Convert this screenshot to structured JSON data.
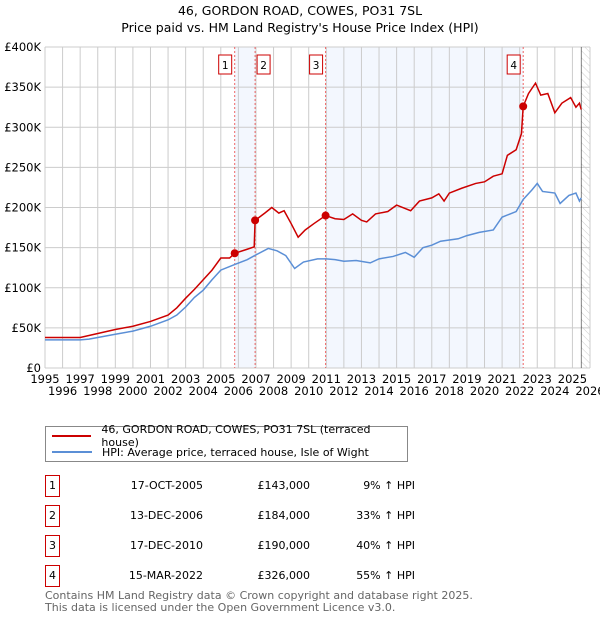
{
  "title": "46, GORDON ROAD, COWES, PO31 7SL",
  "subtitle": "Price paid vs. HM Land Registry's House Price Index (HPI)",
  "chart_data": {
    "type": "line",
    "xlim": [
      1995,
      2026
    ],
    "ylim": [
      0,
      400000
    ],
    "yticks": [
      {
        "v": 0,
        "label": "£0"
      },
      {
        "v": 50000,
        "label": "£50K"
      },
      {
        "v": 100000,
        "label": "£100K"
      },
      {
        "v": 150000,
        "label": "£150K"
      },
      {
        "v": 200000,
        "label": "£200K"
      },
      {
        "v": 250000,
        "label": "£250K"
      },
      {
        "v": 300000,
        "label": "£300K"
      },
      {
        "v": 350000,
        "label": "£350K"
      },
      {
        "v": 400000,
        "label": "£400K"
      }
    ],
    "xticks": [
      "1995",
      "1996",
      "1997",
      "1998",
      "1999",
      "2000",
      "2001",
      "2002",
      "2003",
      "2004",
      "2005",
      "2006",
      "2007",
      "2008",
      "2009",
      "2010",
      "2011",
      "2012",
      "2013",
      "2014",
      "2015",
      "2016",
      "2017",
      "2018",
      "2019",
      "2020",
      "2021",
      "2022",
      "2023",
      "2024",
      "2025",
      "2026"
    ],
    "shaded_ranges": [
      [
        2005.79,
        2006.95
      ],
      [
        2010.96,
        2022.2
      ]
    ],
    "hatched_from": 2025.5,
    "series": [
      {
        "name": "46, GORDON ROAD, COWES, PO31 7SL (terraced house)",
        "color": "#cc0000",
        "points": [
          [
            1995,
            38
          ],
          [
            1997,
            38
          ],
          [
            1998,
            43
          ],
          [
            1999,
            48
          ],
          [
            2000,
            52
          ],
          [
            2001,
            58
          ],
          [
            2002,
            66
          ],
          [
            2002.5,
            75
          ],
          [
            2003,
            87
          ],
          [
            2003.5,
            98
          ],
          [
            2004,
            110
          ],
          [
            2004.5,
            122
          ],
          [
            2005,
            137
          ],
          [
            2005.5,
            137
          ],
          [
            2005.79,
            143
          ],
          [
            2006.5,
            148
          ],
          [
            2006.9,
            151
          ],
          [
            2006.95,
            184
          ],
          [
            2007.5,
            193
          ],
          [
            2007.9,
            200
          ],
          [
            2008.3,
            193
          ],
          [
            2008.6,
            196
          ],
          [
            2009,
            180
          ],
          [
            2009.4,
            163
          ],
          [
            2009.8,
            172
          ],
          [
            2010.3,
            180
          ],
          [
            2010.96,
            190
          ],
          [
            2011.5,
            186
          ],
          [
            2012,
            185
          ],
          [
            2012.5,
            192
          ],
          [
            2013,
            184
          ],
          [
            2013.3,
            182
          ],
          [
            2013.8,
            192
          ],
          [
            2014.5,
            195
          ],
          [
            2015,
            203
          ],
          [
            2015.8,
            196
          ],
          [
            2016.3,
            208
          ],
          [
            2017,
            212
          ],
          [
            2017.4,
            217
          ],
          [
            2017.7,
            208
          ],
          [
            2018,
            218
          ],
          [
            2018.7,
            224
          ],
          [
            2019.5,
            230
          ],
          [
            2020,
            232
          ],
          [
            2020.5,
            239
          ],
          [
            2021,
            242
          ],
          [
            2021.3,
            265
          ],
          [
            2021.8,
            272
          ],
          [
            2022.1,
            292
          ],
          [
            2022.2,
            326
          ],
          [
            2022.5,
            342
          ],
          [
            2022.9,
            355
          ],
          [
            2023.2,
            340
          ],
          [
            2023.6,
            342
          ],
          [
            2024,
            318
          ],
          [
            2024.4,
            330
          ],
          [
            2024.9,
            337
          ],
          [
            2025.2,
            325
          ],
          [
            2025.4,
            330
          ],
          [
            2025.5,
            322
          ]
        ]
      },
      {
        "name": "HPI: Average price, terraced house, Isle of Wight",
        "color": "#5b8fd6",
        "points": [
          [
            1995,
            35
          ],
          [
            1997,
            35
          ],
          [
            1997.5,
            36
          ],
          [
            1998,
            38
          ],
          [
            1999,
            42
          ],
          [
            2000,
            46
          ],
          [
            2001,
            52
          ],
          [
            2002,
            60
          ],
          [
            2002.5,
            66
          ],
          [
            2003,
            76
          ],
          [
            2003.5,
            88
          ],
          [
            2004,
            97
          ],
          [
            2004.5,
            110
          ],
          [
            2005,
            122
          ],
          [
            2005.8,
            129
          ],
          [
            2006.5,
            135
          ],
          [
            2007,
            141
          ],
          [
            2007.7,
            149
          ],
          [
            2008.2,
            146
          ],
          [
            2008.7,
            140
          ],
          [
            2009.2,
            124
          ],
          [
            2009.7,
            132
          ],
          [
            2010.5,
            136
          ],
          [
            2011,
            136
          ],
          [
            2011.5,
            135
          ],
          [
            2012,
            133
          ],
          [
            2012.7,
            134
          ],
          [
            2013.5,
            131
          ],
          [
            2014,
            136
          ],
          [
            2014.8,
            139
          ],
          [
            2015.5,
            144
          ],
          [
            2016,
            138
          ],
          [
            2016.5,
            150
          ],
          [
            2017,
            153
          ],
          [
            2017.5,
            158
          ],
          [
            2018.5,
            161
          ],
          [
            2019,
            165
          ],
          [
            2019.7,
            169
          ],
          [
            2020.5,
            172
          ],
          [
            2021,
            188
          ],
          [
            2021.8,
            195
          ],
          [
            2022.2,
            210
          ],
          [
            2022.7,
            222
          ],
          [
            2023,
            230
          ],
          [
            2023.3,
            220
          ],
          [
            2024,
            218
          ],
          [
            2024.3,
            205
          ],
          [
            2024.8,
            215
          ],
          [
            2025.2,
            218
          ],
          [
            2025.4,
            208
          ],
          [
            2025.5,
            212
          ]
        ]
      }
    ],
    "sales": [
      {
        "n": "1",
        "x": 2005.79,
        "y": 143
      },
      {
        "n": "2",
        "x": 2006.95,
        "y": 184
      },
      {
        "n": "3",
        "x": 2010.96,
        "y": 190
      },
      {
        "n": "4",
        "x": 2022.2,
        "y": 326
      }
    ]
  },
  "legend": {
    "red": "46, GORDON ROAD, COWES, PO31 7SL (terraced house)",
    "blue": "HPI: Average price, terraced house, Isle of Wight"
  },
  "transactions": [
    {
      "n": "1",
      "date": "17-OCT-2005",
      "price": "£143,000",
      "hpi": "9% ↑ HPI"
    },
    {
      "n": "2",
      "date": "13-DEC-2006",
      "price": "£184,000",
      "hpi": "33% ↑ HPI"
    },
    {
      "n": "3",
      "date": "17-DEC-2010",
      "price": "£190,000",
      "hpi": "40% ↑ HPI"
    },
    {
      "n": "4",
      "date": "15-MAR-2022",
      "price": "£326,000",
      "hpi": "55% ↑ HPI"
    }
  ],
  "footer": {
    "line1": "Contains HM Land Registry data © Crown copyright and database right 2025.",
    "line2": "This data is licensed under the Open Government Licence v3.0."
  }
}
